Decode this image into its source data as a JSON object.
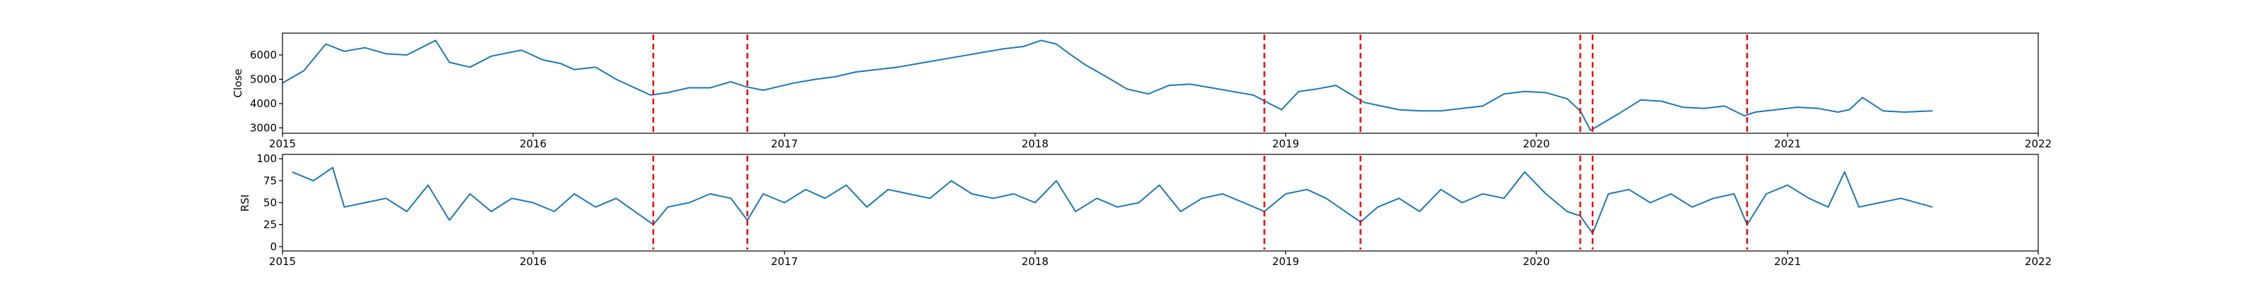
{
  "chart_data": [
    {
      "type": "line",
      "ylabel": "Close",
      "xlabel": "",
      "title": "",
      "xlim": [
        "2015-01-01",
        "2022-01-01"
      ],
      "ylim": [
        2780,
        6900
      ],
      "x_ticks": [
        "2015",
        "2016",
        "2017",
        "2018",
        "2019",
        "2020",
        "2021",
        "2022"
      ],
      "y_ticks": [
        3000,
        4000,
        5000,
        6000
      ],
      "grid": false,
      "legend": "none",
      "series": [
        {
          "color": "#1f77b4",
          "x": [
            "2015-01-01",
            "2015-02-01",
            "2015-03-05",
            "2015-04-01",
            "2015-05-01",
            "2015-06-01",
            "2015-07-01",
            "2015-08-12",
            "2015-09-01",
            "2015-10-01",
            "2015-11-01",
            "2015-12-15",
            "2016-01-15",
            "2016-02-10",
            "2016-03-01",
            "2016-04-01",
            "2016-05-01",
            "2016-06-20",
            "2016-07-15",
            "2016-08-15",
            "2016-09-15",
            "2016-10-15",
            "2016-11-05",
            "2016-12-01",
            "2017-01-15",
            "2017-02-15",
            "2017-03-15",
            "2017-04-15",
            "2017-05-15",
            "2017-06-15",
            "2017-07-15",
            "2017-08-15",
            "2017-09-15",
            "2017-10-15",
            "2017-11-15",
            "2017-12-15",
            "2018-01-10",
            "2018-02-01",
            "2018-02-20",
            "2018-03-15",
            "2018-04-15",
            "2018-05-15",
            "2018-06-15",
            "2018-07-15",
            "2018-08-15",
            "2018-09-15",
            "2018-10-15",
            "2018-11-15",
            "2018-12-05",
            "2018-12-26",
            "2019-01-20",
            "2019-02-15",
            "2019-03-15",
            "2019-04-25",
            "2019-05-20",
            "2019-06-15",
            "2019-07-15",
            "2019-08-15",
            "2019-09-15",
            "2019-10-15",
            "2019-11-15",
            "2019-12-15",
            "2020-01-15",
            "2020-02-15",
            "2020-03-05",
            "2020-03-20",
            "2020-04-01",
            "2020-05-01",
            "2020-06-01",
            "2020-07-01",
            "2020-08-01",
            "2020-09-01",
            "2020-10-01",
            "2020-10-30",
            "2020-11-15",
            "2020-12-15",
            "2021-01-15",
            "2021-02-15",
            "2021-03-15",
            "2021-04-01",
            "2021-04-20",
            "2021-05-20",
            "2021-06-20",
            "2021-07-31"
          ],
          "y": [
            4850,
            5350,
            6450,
            6150,
            6300,
            6050,
            6000,
            6600,
            5700,
            5500,
            5950,
            6200,
            5800,
            5650,
            5400,
            5500,
            5000,
            4350,
            4450,
            4650,
            4650,
            4900,
            4700,
            4550,
            4850,
            5000,
            5100,
            5300,
            5400,
            5500,
            5650,
            5800,
            5950,
            6100,
            6250,
            6350,
            6600,
            6450,
            6050,
            5600,
            5100,
            4600,
            4400,
            4750,
            4800,
            4650,
            4500,
            4350,
            4050,
            3750,
            4500,
            4600,
            4750,
            4050,
            3900,
            3750,
            3700,
            3700,
            3800,
            3900,
            4400,
            4500,
            4450,
            4200,
            3700,
            2900,
            3100,
            3600,
            4150,
            4100,
            3850,
            3800,
            3900,
            3500,
            3650,
            3750,
            3850,
            3800,
            3650,
            3750,
            4250,
            3700,
            3650,
            3700
          ]
        }
      ],
      "vlines": {
        "color": "#ff0000",
        "style": "dashed",
        "x": [
          "2016-06-24",
          "2016-11-08",
          "2018-12-01",
          "2019-04-20",
          "2020-03-05",
          "2020-03-23",
          "2020-11-03"
        ]
      }
    },
    {
      "type": "line",
      "ylabel": "RSI",
      "xlabel": "",
      "title": "",
      "xlim": [
        "2015-01-01",
        "2022-01-01"
      ],
      "ylim": [
        -5,
        105
      ],
      "x_ticks": [
        "2015",
        "2016",
        "2017",
        "2018",
        "2019",
        "2020",
        "2021",
        "2022"
      ],
      "y_ticks": [
        0,
        25,
        50,
        75,
        100
      ],
      "grid": false,
      "legend": "none",
      "series": [
        {
          "color": "#1f77b4",
          "x": [
            "2015-01-15",
            "2015-02-15",
            "2015-03-15",
            "2015-04-01",
            "2015-05-01",
            "2015-06-01",
            "2015-07-01",
            "2015-08-01",
            "2015-09-01",
            "2015-10-01",
            "2015-11-01",
            "2015-12-01",
            "2016-01-01",
            "2016-02-01",
            "2016-03-01",
            "2016-04-01",
            "2016-05-01",
            "2016-06-24",
            "2016-07-15",
            "2016-08-15",
            "2016-09-15",
            "2016-10-15",
            "2016-11-08",
            "2016-12-01",
            "2017-01-01",
            "2017-02-01",
            "2017-03-01",
            "2017-04-01",
            "2017-05-01",
            "2017-06-01",
            "2017-07-01",
            "2017-08-01",
            "2017-09-01",
            "2017-10-01",
            "2017-11-01",
            "2017-12-01",
            "2018-01-01",
            "2018-02-01",
            "2018-03-01",
            "2018-04-01",
            "2018-05-01",
            "2018-06-01",
            "2018-07-01",
            "2018-08-01",
            "2018-09-01",
            "2018-10-01",
            "2018-11-01",
            "2018-12-01",
            "2019-01-01",
            "2019-02-01",
            "2019-03-01",
            "2019-04-20",
            "2019-05-15",
            "2019-06-15",
            "2019-07-15",
            "2019-08-15",
            "2019-09-15",
            "2019-10-15",
            "2019-11-15",
            "2019-12-15",
            "2020-01-15",
            "2020-02-15",
            "2020-03-05",
            "2020-03-23",
            "2020-04-15",
            "2020-05-15",
            "2020-06-15",
            "2020-07-15",
            "2020-08-15",
            "2020-09-15",
            "2020-10-15",
            "2020-11-03",
            "2020-12-01",
            "2021-01-01",
            "2021-02-01",
            "2021-03-01",
            "2021-03-25",
            "2021-04-15",
            "2021-05-15",
            "2021-06-15",
            "2021-07-31"
          ],
          "y": [
            85,
            75,
            90,
            45,
            50,
            55,
            40,
            70,
            30,
            60,
            40,
            55,
            50,
            40,
            60,
            45,
            55,
            25,
            45,
            50,
            60,
            55,
            30,
            60,
            50,
            65,
            55,
            70,
            45,
            65,
            60,
            55,
            75,
            60,
            55,
            60,
            50,
            75,
            40,
            55,
            45,
            50,
            70,
            40,
            55,
            60,
            50,
            40,
            60,
            65,
            55,
            28,
            45,
            55,
            40,
            65,
            50,
            60,
            55,
            85,
            60,
            40,
            35,
            15,
            60,
            65,
            50,
            60,
            45,
            55,
            60,
            25,
            60,
            70,
            55,
            45,
            85,
            45,
            50,
            55,
            45
          ]
        }
      ],
      "vlines": {
        "color": "#ff0000",
        "style": "dashed",
        "x": [
          "2016-06-24",
          "2016-11-08",
          "2018-12-01",
          "2019-04-20",
          "2020-03-05",
          "2020-03-23",
          "2020-11-03"
        ]
      }
    }
  ]
}
